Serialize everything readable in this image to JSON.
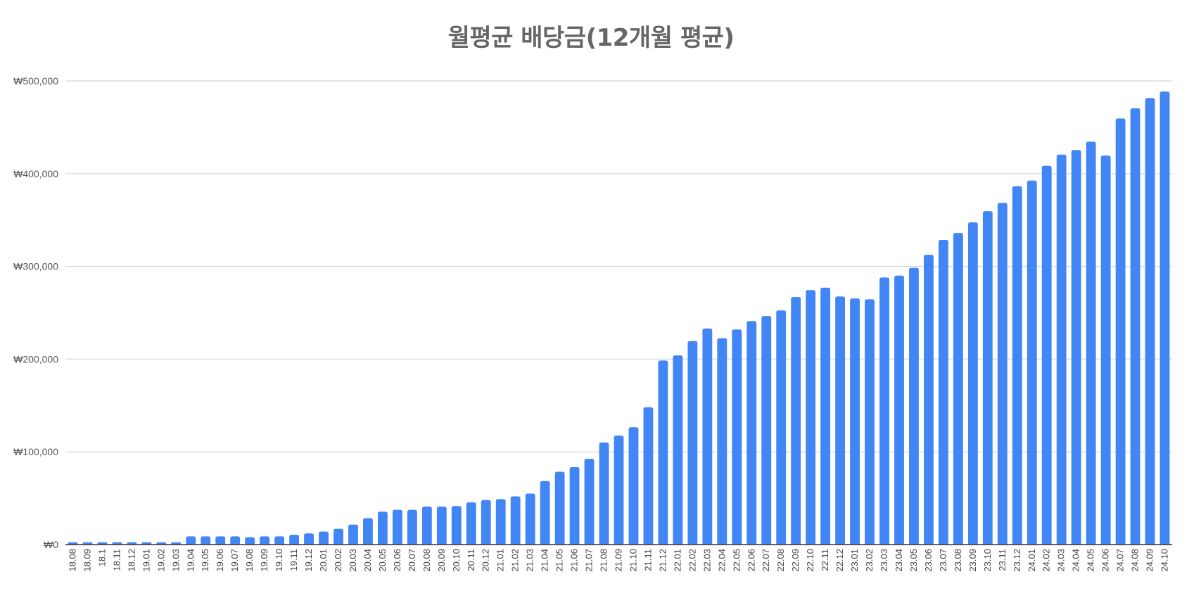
{
  "chart_data": {
    "type": "bar",
    "title": "월평균 배당금(12개월 평균)",
    "xlabel": "",
    "ylabel": "",
    "ylim": [
      0,
      500000
    ],
    "y_ticks": [
      0,
      100000,
      200000,
      300000,
      400000,
      500000
    ],
    "y_tick_labels": [
      "₩0",
      "₩100,000",
      "₩200,000",
      "₩300,000",
      "₩400,000",
      "₩500,000"
    ],
    "grid": true,
    "legend": "none",
    "bar_color": "#4285F4",
    "categories": [
      "18.08",
      "18.09",
      "18.1",
      "18.11",
      "18.12",
      "19.01",
      "19.02",
      "19.03",
      "19.04",
      "19.05",
      "19.06",
      "19.07",
      "19.08",
      "19.09",
      "19.10",
      "19.11",
      "19.12",
      "20.01",
      "20.02",
      "20.03",
      "20.04",
      "20.05",
      "20.06",
      "20.07",
      "20.08",
      "20.09",
      "20.10",
      "20.11",
      "20.12",
      "21.01",
      "21.02",
      "21.03",
      "21.04",
      "21.05",
      "21.06",
      "21.07",
      "21.08",
      "21.09",
      "21.10",
      "21.11",
      "21.12",
      "22.01",
      "22.02",
      "22.03",
      "22.04",
      "22.05",
      "22.06",
      "22.07",
      "22.08",
      "22.09",
      "22.10",
      "22.11",
      "22.12",
      "23.01",
      "23.02",
      "23.03",
      "23.04",
      "23.05",
      "23.06",
      "23.07",
      "23.08",
      "23.09",
      "23.10",
      "23.11",
      "23.12",
      "24.01",
      "24.02",
      "24.03",
      "24.04",
      "24.05",
      "24.06",
      "24.07",
      "24.08",
      "24.09",
      "24.10"
    ],
    "values": [
      2500,
      2500,
      2500,
      2500,
      2500,
      2500,
      2500,
      2500,
      8800,
      8800,
      8800,
      8800,
      8000,
      8800,
      8800,
      10500,
      12000,
      14000,
      17000,
      21500,
      28500,
      35500,
      37500,
      37500,
      41000,
      41000,
      41500,
      45500,
      48000,
      49000,
      52000,
      55000,
      68500,
      78500,
      83500,
      92500,
      110000,
      117500,
      126500,
      148000,
      198500,
      204000,
      219500,
      233000,
      222500,
      232000,
      241000,
      246500,
      252500,
      267000,
      274500,
      277000,
      267500,
      265500,
      264500,
      288000,
      290000,
      298500,
      312500,
      328500,
      336000,
      347500,
      359500,
      368500,
      386500,
      392500,
      408500,
      420500,
      425500,
      434500,
      419500,
      459500,
      470500,
      481500,
      488500
    ]
  }
}
